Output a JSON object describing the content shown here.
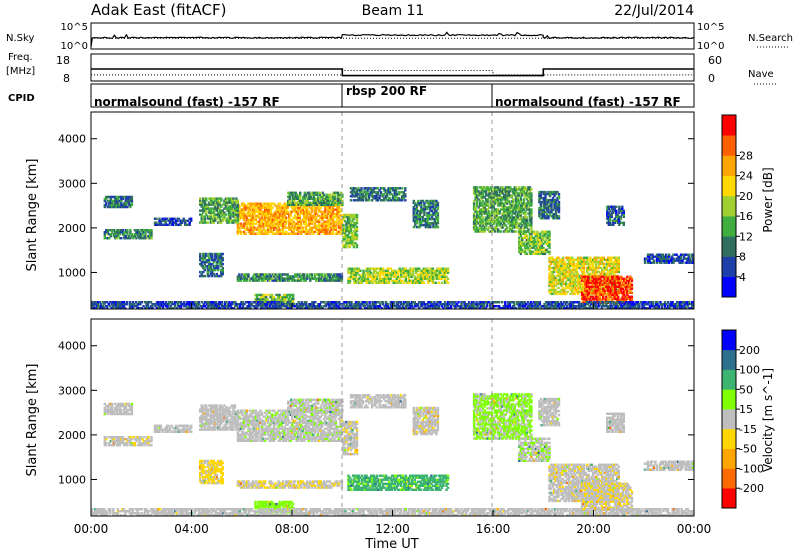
{
  "header": {
    "station": "Adak East (fitACF)",
    "beam": "Beam 11",
    "date": "22/Jul/2014"
  },
  "noise_panel": {
    "left_label": "N.Sky",
    "left_ticks": [
      "10^5",
      "10^0"
    ],
    "right_label": "N.Search",
    "right_ticks": [
      "10^5",
      "10^0"
    ]
  },
  "freq_panel": {
    "left_label_line1": "Freq.",
    "left_label_line2": "[MHz]",
    "left_ticks": [
      "18",
      "8"
    ],
    "right_label": "Nave",
    "right_ticks": [
      "60",
      "0"
    ]
  },
  "cpid_panel": {
    "label": "CPID",
    "segments": [
      {
        "label": "normalsound (fast) -157 RF",
        "start_h": 0,
        "end_h": 10
      },
      {
        "label": "rbsp 200 RF",
        "start_h": 10,
        "end_h": 16
      },
      {
        "label": "normalsound (fast) -157 RF",
        "start_h": 16,
        "end_h": 24
      }
    ]
  },
  "power_colorbar": {
    "label": "Power [dB]",
    "ticks": [
      "4",
      "8",
      "12",
      "16",
      "20",
      "24",
      "28"
    ],
    "colors": [
      "#0000ff",
      "#1e3faa",
      "#2f6f5f",
      "#3fae3f",
      "#9fd030",
      "#ffd800",
      "#ffa500",
      "#ff6000",
      "#ff0000"
    ]
  },
  "velocity_colorbar": {
    "label": "Velocity [m s^-1]",
    "ticks": [
      "-200",
      "-100",
      "-50",
      "-15",
      "15",
      "50",
      "100",
      "200"
    ],
    "colors": [
      "#ff0000",
      "#ff6a00",
      "#ffa500",
      "#ffd700",
      "#bebebe",
      "#7fff00",
      "#3cb371",
      "#2e6f8e",
      "#0000ff"
    ]
  },
  "x_axis": {
    "label": "Time UT",
    "ticks": [
      "00:00",
      "04:00",
      "08:00",
      "12:00",
      "16:00",
      "20:00",
      "00:00"
    ]
  },
  "chart_data": {
    "type": "heatmap",
    "panels": [
      "power",
      "velocity"
    ],
    "xlabel": "Time UT",
    "ylabel": "Slant Range [km]",
    "xlim_hours": [
      0,
      24
    ],
    "ylim_km": [
      180,
      4600
    ],
    "yticks": [
      1000,
      2000,
      3000,
      4000
    ],
    "mode_boundaries_hours": [
      10,
      16
    ],
    "noise_sky_level": [
      {
        "t0": 0,
        "t1": 0.05,
        "log10": 0
      },
      {
        "t0": 0.05,
        "t1": 10,
        "log10": 2.1
      },
      {
        "t0": 10,
        "t1": 18,
        "log10": 2.7
      },
      {
        "t0": 18,
        "t1": 24,
        "log10": 2.1
      }
    ],
    "frequency_mhz": [
      {
        "t0": 0,
        "t1": 10,
        "value": 13
      },
      {
        "t0": 10,
        "t1": 18,
        "value": 10
      },
      {
        "t0": 18,
        "t1": 24,
        "value": 13
      }
    ],
    "nave": [
      {
        "t0": 0,
        "t1": 10,
        "value": 14
      },
      {
        "t0": 10,
        "t1": 16,
        "value": 26
      },
      {
        "t0": 16,
        "t1": 24,
        "value": 14
      }
    ],
    "echo_regions": [
      {
        "t0": 5.8,
        "t1": 10.0,
        "r0": 1850,
        "r1": 2550,
        "p": 22,
        "v": 5
      },
      {
        "t0": 4.3,
        "t1": 5.8,
        "r0": 2100,
        "r1": 2650,
        "p": 12,
        "v": 0
      },
      {
        "t0": 0.5,
        "t1": 2.4,
        "r0": 1750,
        "r1": 1950,
        "p": 10,
        "v": -5
      },
      {
        "t0": 0.5,
        "t1": 1.6,
        "r0": 2450,
        "r1": 2700,
        "p": 8,
        "v": 0
      },
      {
        "t0": 2.5,
        "t1": 4.0,
        "r0": 2050,
        "r1": 2200,
        "p": 6,
        "v": 0
      },
      {
        "t0": 4.3,
        "t1": 5.2,
        "r0": 900,
        "r1": 1400,
        "p": 8,
        "v": -20
      },
      {
        "t0": 5.8,
        "t1": 10.0,
        "r0": 800,
        "r1": 950,
        "p": 10,
        "v": -10
      },
      {
        "t0": 7.8,
        "t1": 10.0,
        "r0": 2500,
        "r1": 2800,
        "p": 12,
        "v": 5
      },
      {
        "t0": 10.0,
        "t1": 10.6,
        "r0": 1550,
        "r1": 2300,
        "p": 14,
        "v": -5
      },
      {
        "t0": 10.3,
        "t1": 12.5,
        "r0": 2600,
        "r1": 2900,
        "p": 8,
        "v": 0
      },
      {
        "t0": 10.2,
        "t1": 14.2,
        "r0": 750,
        "r1": 1100,
        "p": 16,
        "v": 60
      },
      {
        "t0": 12.8,
        "t1": 13.8,
        "r0": 2000,
        "r1": 2600,
        "p": 9,
        "v": -5
      },
      {
        "t0": 15.2,
        "t1": 17.5,
        "r0": 1900,
        "r1": 2900,
        "p": 12,
        "v": 20
      },
      {
        "t0": 17.0,
        "t1": 18.2,
        "r0": 1400,
        "r1": 1900,
        "p": 14,
        "v": 10
      },
      {
        "t0": 17.8,
        "t1": 18.6,
        "r0": 2200,
        "r1": 2800,
        "p": 8,
        "v": 0
      },
      {
        "t0": 18.2,
        "t1": 21.0,
        "r0": 500,
        "r1": 1350,
        "p": 18,
        "v": -5
      },
      {
        "t0": 19.5,
        "t1": 21.5,
        "r0": 300,
        "r1": 900,
        "p": 28,
        "v": -10
      },
      {
        "t0": 20.5,
        "t1": 21.2,
        "r0": 2050,
        "r1": 2500,
        "p": 7,
        "v": 0
      },
      {
        "t0": 22.0,
        "t1": 24.0,
        "r0": 1200,
        "r1": 1400,
        "p": 6,
        "v": 0
      },
      {
        "t0": 6.5,
        "t1": 8.0,
        "r0": 250,
        "r1": 500,
        "p": 14,
        "v": 30
      },
      {
        "t0": 0.0,
        "t1": 24.0,
        "r0": 180,
        "r1": 320,
        "p": 6,
        "v": 0
      }
    ]
  }
}
